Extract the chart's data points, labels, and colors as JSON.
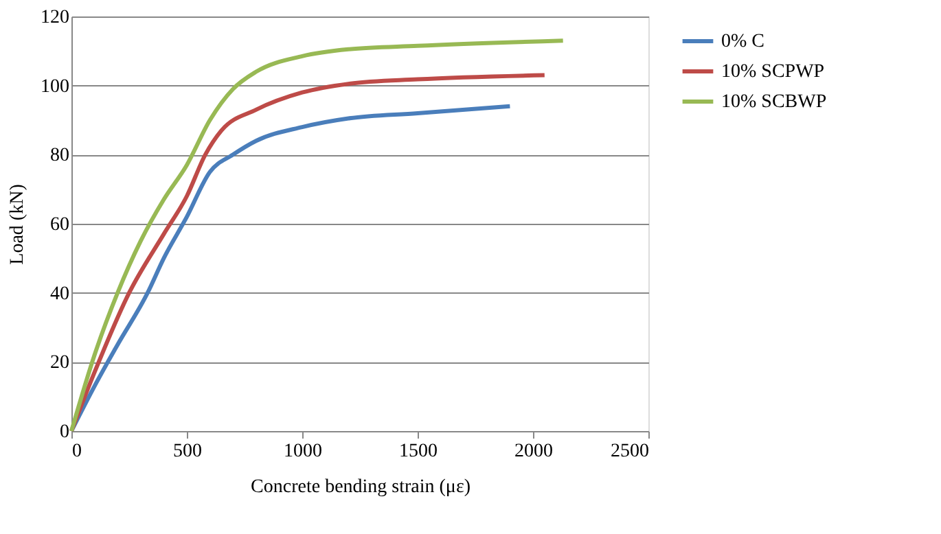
{
  "chart_data": {
    "type": "line",
    "xlabel": "Concrete bending strain (με)",
    "ylabel": "Load (kN)",
    "xlim": [
      0,
      2500
    ],
    "xticks": [
      0,
      500,
      1000,
      1500,
      2000,
      2500
    ],
    "ylim": [
      0,
      120
    ],
    "yticks": [
      0,
      20,
      40,
      60,
      80,
      100,
      120
    ],
    "grid": "y",
    "legend": "right",
    "marker": "none",
    "line_style": "solid",
    "series": [
      {
        "name": "0% C",
        "color": "#4a7ebb",
        "x": [
          0,
          100,
          200,
          330,
          400,
          500,
          600,
          700,
          800,
          1000,
          1200,
          1500,
          1900
        ],
        "values": [
          0,
          13,
          25,
          40,
          50,
          62,
          75,
          80,
          84,
          88,
          90.5,
          92,
          94
        ]
      },
      {
        "name": "10% SCPWP",
        "color": "#be4b48",
        "x": [
          0,
          100,
          250,
          400,
          500,
          580,
          650,
          800,
          1000,
          1200,
          1500,
          2050
        ],
        "values": [
          0,
          17,
          40,
          57,
          68,
          80,
          87,
          93,
          98,
          100.5,
          101.8,
          103
        ]
      },
      {
        "name": "10% SCBWP",
        "color": "#98b954",
        "x": [
          0,
          100,
          200,
          300,
          400,
          500,
          600,
          700,
          800,
          1000,
          1200,
          1500,
          2130
        ],
        "values": [
          0,
          22,
          40,
          55,
          67,
          77,
          90,
          99,
          104,
          108.5,
          110.5,
          111.5,
          113
        ]
      }
    ]
  }
}
